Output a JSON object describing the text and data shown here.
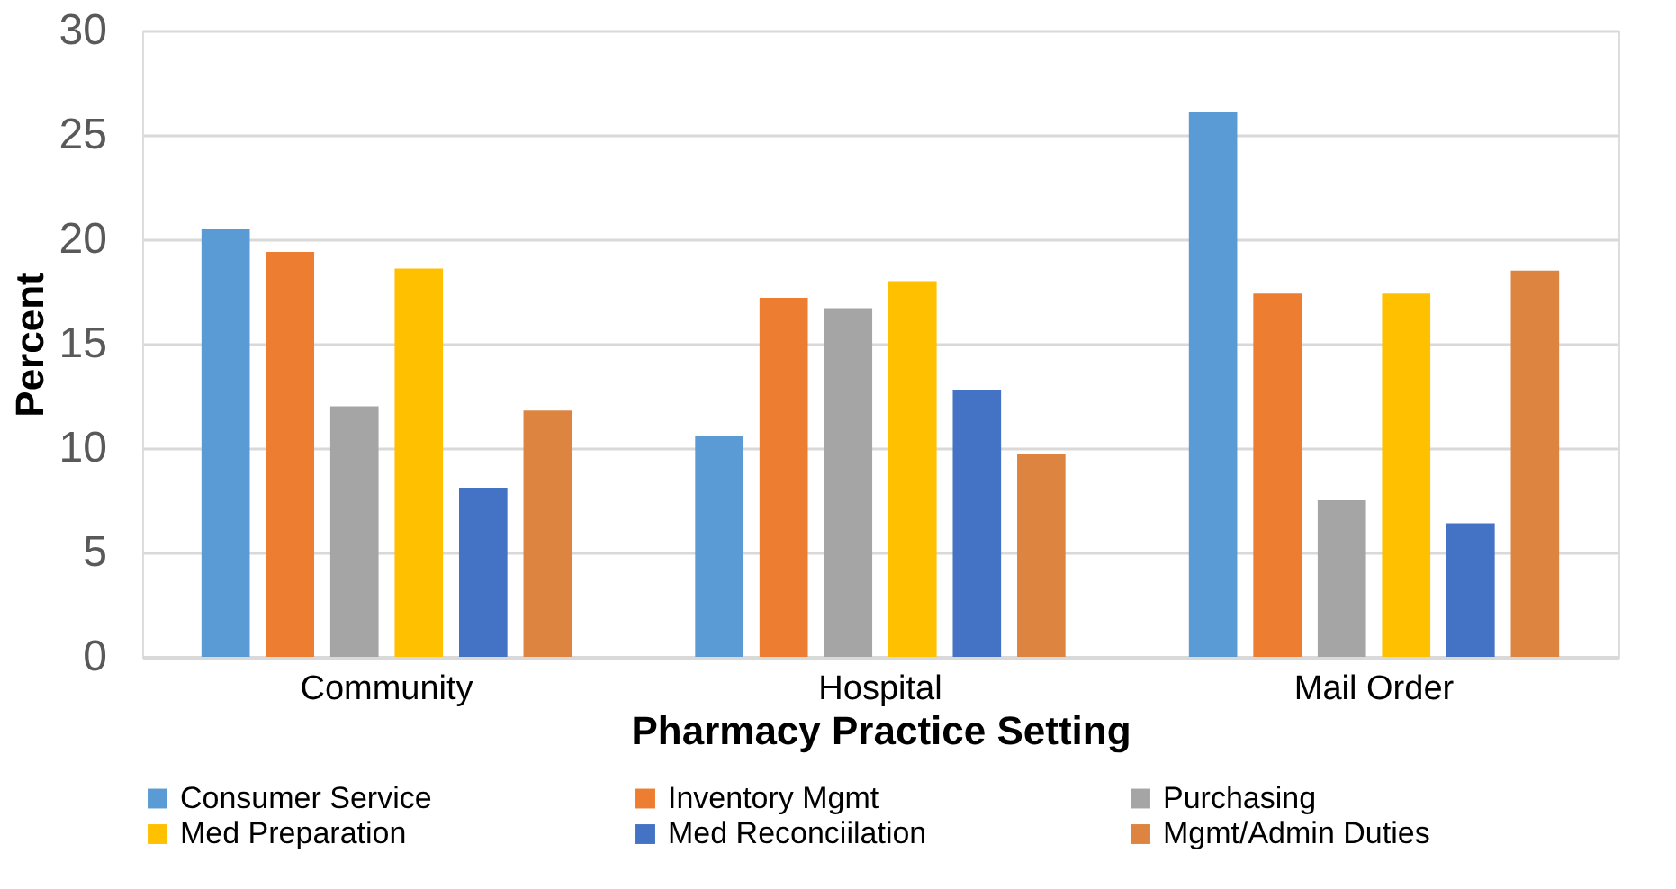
{
  "chart_data": {
    "type": "bar",
    "xlabel": "Pharmacy Practice Setting",
    "ylabel": "Percent",
    "categories": [
      "Community",
      "Hospital",
      "Mail Order"
    ],
    "series": [
      {
        "name": "Consumer Service",
        "color": "#5b9bd5",
        "values": [
          20.5,
          10.6,
          26.1
        ]
      },
      {
        "name": "Inventory Mgmt",
        "color": "#ed7d31",
        "values": [
          19.4,
          17.2,
          17.4
        ]
      },
      {
        "name": "Purchasing",
        "color": "#a5a5a5",
        "values": [
          12.0,
          16.7,
          7.5
        ]
      },
      {
        "name": "Med Preparation",
        "color": "#ffc000",
        "values": [
          18.6,
          18.0,
          17.4
        ]
      },
      {
        "name": "Med Reconciilation",
        "color": "#4472c4",
        "values": [
          8.1,
          12.8,
          6.4
        ]
      },
      {
        "name": "Mgmt/Admin Duties",
        "color": "#dc8440",
        "values": [
          11.8,
          9.7,
          18.5
        ]
      }
    ],
    "ylim": [
      0,
      30
    ],
    "yticks": [
      0,
      5,
      10,
      15,
      20,
      25,
      30
    ],
    "grid": "y",
    "legend": "bottom"
  }
}
